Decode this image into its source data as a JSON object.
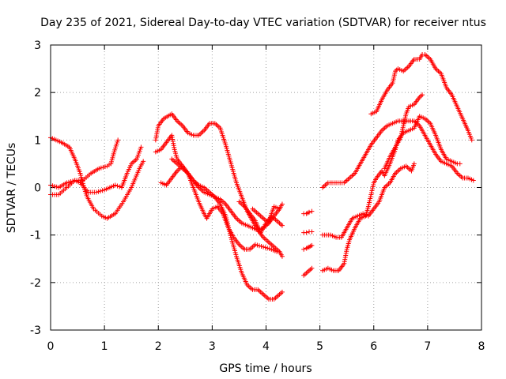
{
  "chart_data": {
    "type": "scatter",
    "title": "Day 235 of 2021, Sidereal Day-to-day VTEC variation (SDTVAR) for receiver ntus",
    "xlabel": "GPS time / hours",
    "ylabel": "SDTVAR / TECUs",
    "xlim": [
      0,
      8
    ],
    "ylim": [
      -3,
      3
    ],
    "xticks": [
      "0",
      "1",
      "2",
      "3",
      "4",
      "5",
      "6",
      "7",
      "8"
    ],
    "yticks": [
      "-3",
      "-2",
      "-1",
      "0",
      "1",
      "2",
      "3"
    ],
    "grid": true,
    "marker": "plus",
    "color": "#ff0000",
    "series": [
      {
        "name": "s1",
        "points": [
          [
            0.0,
            1.05
          ],
          [
            0.2,
            0.95
          ],
          [
            0.35,
            0.85
          ],
          [
            0.45,
            0.6
          ],
          [
            0.55,
            0.3
          ],
          [
            0.62,
            0.0
          ],
          [
            0.68,
            -0.2
          ],
          [
            0.8,
            -0.45
          ],
          [
            0.95,
            -0.6
          ],
          [
            1.05,
            -0.65
          ],
          [
            1.2,
            -0.55
          ],
          [
            1.35,
            -0.3
          ],
          [
            1.5,
            0.0
          ],
          [
            1.65,
            0.4
          ],
          [
            1.72,
            0.55
          ]
        ]
      },
      {
        "name": "s2",
        "points": [
          [
            0.0,
            0.05
          ],
          [
            0.15,
            0.0
          ],
          [
            0.3,
            0.1
          ],
          [
            0.45,
            0.15
          ],
          [
            0.6,
            0.15
          ],
          [
            0.75,
            0.3
          ],
          [
            0.9,
            0.4
          ],
          [
            1.05,
            0.45
          ],
          [
            1.12,
            0.5
          ],
          [
            1.18,
            0.75
          ],
          [
            1.25,
            1.0
          ]
        ]
      },
      {
        "name": "s3",
        "points": [
          [
            0.0,
            -0.15
          ],
          [
            0.15,
            -0.15
          ],
          [
            0.3,
            0.0
          ],
          [
            0.45,
            0.15
          ],
          [
            0.55,
            0.1
          ],
          [
            0.7,
            -0.1
          ],
          [
            0.85,
            -0.1
          ],
          [
            1.0,
            -0.05
          ],
          [
            1.1,
            0.0
          ],
          [
            1.2,
            0.05
          ],
          [
            1.32,
            0.0
          ],
          [
            1.42,
            0.3
          ],
          [
            1.5,
            0.5
          ],
          [
            1.6,
            0.6
          ],
          [
            1.68,
            0.85
          ]
        ]
      },
      {
        "name": "s4",
        "points": [
          [
            1.95,
            1.0
          ],
          [
            2.0,
            1.3
          ],
          [
            2.1,
            1.45
          ],
          [
            2.25,
            1.55
          ],
          [
            2.35,
            1.4
          ],
          [
            2.45,
            1.3
          ],
          [
            2.55,
            1.15
          ],
          [
            2.65,
            1.1
          ],
          [
            2.75,
            1.1
          ],
          [
            2.85,
            1.2
          ],
          [
            2.95,
            1.35
          ],
          [
            3.05,
            1.35
          ],
          [
            3.15,
            1.25
          ],
          [
            3.25,
            0.9
          ],
          [
            3.35,
            0.5
          ],
          [
            3.45,
            0.1
          ],
          [
            3.55,
            -0.2
          ],
          [
            3.65,
            -0.5
          ],
          [
            3.75,
            -0.7
          ],
          [
            3.85,
            -0.9
          ],
          [
            3.95,
            -1.05
          ],
          [
            4.05,
            -1.15
          ],
          [
            4.15,
            -1.25
          ],
          [
            4.25,
            -1.35
          ],
          [
            4.3,
            -1.45
          ]
        ]
      },
      {
        "name": "s5",
        "points": [
          [
            1.95,
            0.75
          ],
          [
            2.05,
            0.8
          ],
          [
            2.15,
            0.95
          ],
          [
            2.25,
            1.1
          ],
          [
            2.3,
            0.8
          ],
          [
            2.35,
            0.6
          ],
          [
            2.45,
            0.45
          ],
          [
            2.55,
            0.3
          ],
          [
            2.65,
            0.15
          ],
          [
            2.75,
            0.0
          ],
          [
            2.85,
            -0.1
          ],
          [
            2.95,
            -0.15
          ],
          [
            3.05,
            -0.2
          ],
          [
            3.15,
            -0.25
          ],
          [
            3.25,
            -0.35
          ],
          [
            3.35,
            -0.5
          ],
          [
            3.45,
            -0.65
          ],
          [
            3.55,
            -0.75
          ],
          [
            3.65,
            -0.8
          ],
          [
            3.75,
            -0.85
          ],
          [
            3.85,
            -0.9
          ],
          [
            3.95,
            -0.85
          ],
          [
            4.05,
            -0.75
          ],
          [
            4.15,
            -0.6
          ],
          [
            4.25,
            -0.45
          ]
        ]
      },
      {
        "name": "s6",
        "points": [
          [
            2.05,
            0.1
          ],
          [
            2.15,
            0.05
          ],
          [
            2.25,
            0.2
          ],
          [
            2.35,
            0.35
          ],
          [
            2.45,
            0.45
          ],
          [
            2.55,
            0.3
          ],
          [
            2.65,
            0.0
          ],
          [
            2.75,
            -0.3
          ],
          [
            2.85,
            -0.55
          ],
          [
            2.9,
            -0.65
          ],
          [
            3.0,
            -0.45
          ],
          [
            3.1,
            -0.4
          ],
          [
            3.2,
            -0.55
          ],
          [
            3.3,
            -0.85
          ],
          [
            3.4,
            -1.05
          ],
          [
            3.5,
            -1.2
          ],
          [
            3.6,
            -1.3
          ],
          [
            3.7,
            -1.3
          ],
          [
            3.8,
            -1.2
          ],
          [
            3.95,
            -1.25
          ],
          [
            4.1,
            -1.3
          ],
          [
            4.2,
            -1.35
          ]
        ]
      },
      {
        "name": "s7",
        "points": [
          [
            2.25,
            0.6
          ],
          [
            2.35,
            0.5
          ],
          [
            2.45,
            0.4
          ],
          [
            2.55,
            0.3
          ],
          [
            2.65,
            0.15
          ],
          [
            2.75,
            0.05
          ],
          [
            2.85,
            0.0
          ],
          [
            2.95,
            -0.1
          ],
          [
            3.05,
            -0.2
          ],
          [
            3.15,
            -0.35
          ],
          [
            3.25,
            -0.6
          ],
          [
            3.35,
            -1.05
          ],
          [
            3.45,
            -1.45
          ],
          [
            3.55,
            -1.8
          ],
          [
            3.65,
            -2.05
          ],
          [
            3.75,
            -2.15
          ],
          [
            3.85,
            -2.15
          ],
          [
            3.95,
            -2.25
          ],
          [
            4.05,
            -2.35
          ],
          [
            4.15,
            -2.35
          ],
          [
            4.25,
            -2.25
          ],
          [
            4.3,
            -2.2
          ]
        ]
      },
      {
        "name": "s8",
        "points": [
          [
            3.75,
            -0.45
          ],
          [
            3.85,
            -0.55
          ],
          [
            3.95,
            -0.65
          ],
          [
            4.05,
            -0.75
          ],
          [
            4.1,
            -0.55
          ],
          [
            4.15,
            -0.4
          ],
          [
            4.25,
            -0.45
          ],
          [
            4.3,
            -0.35
          ]
        ]
      },
      {
        "name": "s9",
        "points": [
          [
            3.5,
            -0.3
          ],
          [
            3.6,
            -0.4
          ],
          [
            3.7,
            -0.55
          ],
          [
            3.8,
            -0.7
          ],
          [
            3.9,
            -0.95
          ],
          [
            4.0,
            -0.75
          ],
          [
            4.1,
            -0.6
          ],
          [
            4.2,
            -0.7
          ],
          [
            4.3,
            -0.8
          ]
        ]
      },
      {
        "name": "s10",
        "points": [
          [
            4.7,
            -1.85
          ],
          [
            4.75,
            -1.8
          ],
          [
            4.8,
            -1.75
          ],
          [
            4.85,
            -1.7
          ]
        ]
      },
      {
        "name": "s11",
        "points": [
          [
            4.7,
            -1.3
          ],
          [
            4.75,
            -1.28
          ],
          [
            4.8,
            -1.25
          ],
          [
            4.85,
            -1.22
          ]
        ]
      },
      {
        "name": "s12",
        "points": [
          [
            4.7,
            -0.55
          ],
          [
            4.75,
            -0.55
          ],
          [
            4.8,
            -0.52
          ],
          [
            4.85,
            -0.5
          ]
        ]
      },
      {
        "name": "s13",
        "points": [
          [
            4.7,
            -0.95
          ],
          [
            4.75,
            -0.95
          ],
          [
            4.8,
            -0.93
          ],
          [
            4.85,
            -0.93
          ]
        ]
      },
      {
        "name": "s14",
        "points": [
          [
            5.05,
            0.0
          ],
          [
            5.15,
            0.1
          ],
          [
            5.3,
            0.1
          ],
          [
            5.45,
            0.1
          ],
          [
            5.55,
            0.2
          ],
          [
            5.65,
            0.3
          ],
          [
            5.75,
            0.5
          ],
          [
            5.85,
            0.7
          ],
          [
            5.95,
            0.9
          ],
          [
            6.05,
            1.05
          ],
          [
            6.15,
            1.2
          ],
          [
            6.25,
            1.3
          ],
          [
            6.35,
            1.35
          ],
          [
            6.45,
            1.4
          ],
          [
            6.55,
            1.4
          ],
          [
            6.65,
            1.4
          ],
          [
            6.75,
            1.4
          ],
          [
            6.85,
            1.3
          ],
          [
            6.95,
            1.1
          ],
          [
            7.05,
            0.9
          ],
          [
            7.15,
            0.7
          ],
          [
            7.25,
            0.55
          ],
          [
            7.35,
            0.5
          ],
          [
            7.45,
            0.45
          ],
          [
            7.55,
            0.3
          ],
          [
            7.65,
            0.2
          ],
          [
            7.75,
            0.2
          ],
          [
            7.85,
            0.15
          ]
        ]
      },
      {
        "name": "s15",
        "points": [
          [
            5.05,
            -1.0
          ],
          [
            5.2,
            -1.0
          ],
          [
            5.3,
            -1.05
          ],
          [
            5.4,
            -1.05
          ],
          [
            5.5,
            -0.85
          ],
          [
            5.6,
            -0.65
          ],
          [
            5.7,
            -0.6
          ],
          [
            5.8,
            -0.55
          ],
          [
            5.9,
            -0.6
          ],
          [
            6.0,
            -0.45
          ],
          [
            6.1,
            -0.3
          ],
          [
            6.2,
            0.0
          ],
          [
            6.3,
            0.1
          ],
          [
            6.4,
            0.3
          ],
          [
            6.5,
            0.4
          ],
          [
            6.6,
            0.45
          ],
          [
            6.7,
            0.35
          ],
          [
            6.75,
            0.5
          ]
        ]
      },
      {
        "name": "s16",
        "points": [
          [
            5.05,
            -1.75
          ],
          [
            5.15,
            -1.7
          ],
          [
            5.25,
            -1.75
          ],
          [
            5.35,
            -1.75
          ],
          [
            5.45,
            -1.6
          ],
          [
            5.5,
            -1.3
          ],
          [
            5.55,
            -1.1
          ],
          [
            5.65,
            -0.85
          ],
          [
            5.75,
            -0.65
          ],
          [
            5.85,
            -0.6
          ],
          [
            5.9,
            -0.4
          ],
          [
            5.95,
            -0.15
          ],
          [
            6.0,
            0.1
          ],
          [
            6.05,
            0.2
          ],
          [
            6.15,
            0.35
          ],
          [
            6.2,
            0.25
          ],
          [
            6.3,
            0.5
          ],
          [
            6.4,
            0.8
          ],
          [
            6.45,
            1.0
          ],
          [
            6.55,
            1.15
          ],
          [
            6.65,
            1.2
          ],
          [
            6.75,
            1.25
          ],
          [
            6.85,
            1.5
          ],
          [
            6.95,
            1.45
          ],
          [
            7.05,
            1.35
          ],
          [
            7.15,
            1.1
          ],
          [
            7.25,
            0.8
          ],
          [
            7.35,
            0.6
          ],
          [
            7.45,
            0.55
          ],
          [
            7.55,
            0.5
          ],
          [
            7.6,
            0.5
          ]
        ]
      },
      {
        "name": "s17",
        "points": [
          [
            5.95,
            1.55
          ],
          [
            6.05,
            1.6
          ],
          [
            6.15,
            1.85
          ],
          [
            6.25,
            2.05
          ],
          [
            6.35,
            2.2
          ],
          [
            6.4,
            2.45
          ],
          [
            6.45,
            2.5
          ],
          [
            6.55,
            2.45
          ],
          [
            6.65,
            2.55
          ],
          [
            6.75,
            2.7
          ],
          [
            6.85,
            2.7
          ],
          [
            6.9,
            2.8
          ],
          [
            6.95,
            2.8
          ],
          [
            7.05,
            2.7
          ],
          [
            7.15,
            2.5
          ],
          [
            7.25,
            2.4
          ],
          [
            7.35,
            2.1
          ],
          [
            7.45,
            1.95
          ],
          [
            7.55,
            1.7
          ],
          [
            7.65,
            1.45
          ],
          [
            7.75,
            1.2
          ],
          [
            7.82,
            1.0
          ]
        ]
      },
      {
        "name": "s18",
        "points": [
          [
            6.2,
            0.4
          ],
          [
            6.3,
            0.65
          ],
          [
            6.4,
            0.85
          ],
          [
            6.5,
            1.05
          ],
          [
            6.55,
            1.3
          ],
          [
            6.6,
            1.55
          ],
          [
            6.65,
            1.7
          ],
          [
            6.75,
            1.75
          ],
          [
            6.85,
            1.9
          ],
          [
            6.9,
            1.95
          ]
        ]
      }
    ]
  }
}
